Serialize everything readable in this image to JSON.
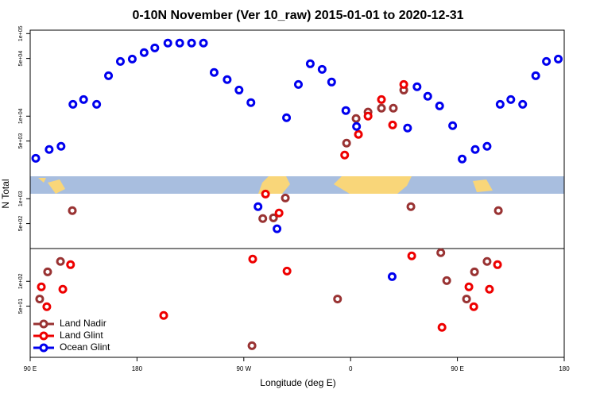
{
  "chart_data": {
    "type": "scatter",
    "title": "0-10N November (Ver 10_raw)   2015-01-01 to 2020-12-31",
    "x_label": "Longitude (deg E)",
    "y_label": "N Total",
    "xlim": [
      90,
      540
    ],
    "xticks": [
      {
        "value": 90,
        "label": "90 E"
      },
      180,
      {
        "value": 270,
        "label": "90 W"
      },
      {
        "value": 360,
        "label": "0"
      },
      {
        "value": 450,
        "label": "90 E"
      },
      {
        "value": 540,
        "label": "180"
      }
    ],
    "ylim": [
      12,
      110000
    ],
    "log_y": true,
    "yticks": [
      {
        "value": 100000,
        "label": "1e+05"
      },
      {
        "value": 50000,
        "label": "5e+04"
      },
      {
        "value": 10000,
        "label": "1e+04"
      },
      {
        "value": 5000,
        "label": "5e+03"
      },
      {
        "value": 1000,
        "label": "1e+03"
      },
      {
        "value": 500,
        "label": "5e+02"
      },
      {
        "value": 100,
        "label": "1e+02"
      },
      {
        "value": 50,
        "label": "5e+01"
      }
    ],
    "legend": "bottom-left",
    "series": [
      {
        "name": "Land Nadir",
        "color": "#993333",
        "x": [
          125.5,
          98,
          104.7,
          115.5,
          356.6,
          364.6,
          374.7,
          386,
          396,
          404.8,
          410.8,
          305,
          295,
          286,
          436,
          441,
          464.4,
          457.7,
          475,
          484.5,
          349,
          276.9
        ],
        "values": [
          718,
          61,
          130,
          174,
          4710,
          9360,
          11200,
          12500,
          12500,
          20700,
          802,
          1020,
          587,
          575,
          222,
          102,
          130,
          61,
          174,
          718,
          61,
          16.6
        ]
      },
      {
        "name": "Land Glint",
        "color": "#ee0000",
        "x": [
          99.4,
          104,
          117.5,
          124,
          202.5,
          277.5,
          288.3,
          299.7,
          306.4,
          355,
          366.6,
          374.7,
          386,
          395.4,
          404.8,
          411.5,
          437,
          459.7,
          463.8,
          477,
          483.8
        ],
        "values": [
          85.7,
          49.2,
          80.2,
          159,
          38.6,
          186,
          1140,
          671,
          133,
          3380,
          6010,
          10000,
          15900,
          7830,
          24200,
          203,
          27.7,
          85.7,
          49.2,
          80.2,
          159
        ]
      },
      {
        "name": "Ocean Glint",
        "color": "#0000ee",
        "x": [
          94.7,
          106,
          116,
          126,
          135,
          146,
          156,
          166,
          176,
          186,
          195,
          206,
          216,
          226,
          236,
          245,
          256,
          266,
          276,
          306,
          316,
          326,
          336,
          344,
          356,
          365,
          408,
          416,
          425,
          435,
          446,
          454,
          465,
          475,
          486,
          495,
          505,
          516,
          525,
          535,
          282,
          298,
          395
        ],
        "values": [
          3090,
          3950,
          4310,
          13900,
          15900,
          13900,
          30900,
          46000,
          49200,
          58800,
          67100,
          76700,
          76700,
          76700,
          76700,
          33800,
          27700,
          20700,
          14600,
          9570,
          24200,
          43100,
          36900,
          25900,
          11700,
          7500,
          7180,
          22700,
          17400,
          13300,
          7670,
          3030,
          3950,
          4310,
          13900,
          15900,
          13900,
          30900,
          46000,
          49200,
          802,
          432,
          114
        ]
      }
    ]
  }
}
